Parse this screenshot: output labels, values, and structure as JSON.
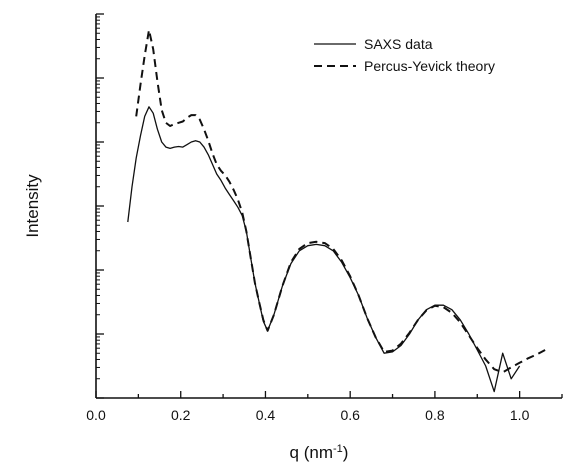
{
  "chart_data": {
    "type": "line",
    "title": "",
    "xlabel": "q (nm",
    "xlabel_sup": "-1",
    "xlabel_close": ")",
    "ylabel": "Intensity",
    "xlim": [
      0.0,
      1.1
    ],
    "ylim": [
      0,
      6
    ],
    "log_y": true,
    "y_tick_labels_shown": false,
    "x_ticks": [
      {
        "value": 0.0,
        "label": "0.0"
      },
      {
        "value": 0.2,
        "label": "0.2"
      },
      {
        "value": 0.4,
        "label": "0.4"
      },
      {
        "value": 0.6,
        "label": "0.6"
      },
      {
        "value": 0.8,
        "label": "0.8"
      },
      {
        "value": 1.0,
        "label": "1.0"
      }
    ],
    "grid": false,
    "legend_position": "top-right",
    "series": [
      {
        "name": "SAXS data",
        "style": "solid",
        "color": "#111111",
        "x": [
          0.075,
          0.085,
          0.095,
          0.105,
          0.115,
          0.125,
          0.135,
          0.145,
          0.155,
          0.165,
          0.175,
          0.185,
          0.195,
          0.205,
          0.215,
          0.225,
          0.235,
          0.245,
          0.255,
          0.265,
          0.275,
          0.285,
          0.295,
          0.305,
          0.315,
          0.325,
          0.335,
          0.345,
          0.355,
          0.365,
          0.375,
          0.385,
          0.395,
          0.405,
          0.42,
          0.44,
          0.46,
          0.48,
          0.5,
          0.52,
          0.54,
          0.56,
          0.58,
          0.6,
          0.62,
          0.64,
          0.66,
          0.68,
          0.7,
          0.72,
          0.74,
          0.76,
          0.78,
          0.8,
          0.82,
          0.84,
          0.86,
          0.88,
          0.9,
          0.92,
          0.94,
          0.96,
          0.98,
          1.0
        ],
        "y": [
          2.75,
          3.3,
          3.75,
          4.1,
          4.4,
          4.55,
          4.45,
          4.2,
          4.0,
          3.92,
          3.9,
          3.92,
          3.93,
          3.92,
          3.96,
          4.0,
          4.02,
          4.0,
          3.92,
          3.8,
          3.65,
          3.5,
          3.4,
          3.28,
          3.18,
          3.08,
          2.98,
          2.85,
          2.6,
          2.2,
          1.8,
          1.5,
          1.2,
          1.05,
          1.3,
          1.75,
          2.1,
          2.3,
          2.38,
          2.4,
          2.38,
          2.3,
          2.12,
          1.88,
          1.6,
          1.25,
          0.95,
          0.7,
          0.72,
          0.82,
          1.0,
          1.22,
          1.38,
          1.45,
          1.45,
          1.38,
          1.22,
          1.0,
          0.75,
          0.5,
          0.1,
          0.7,
          0.3,
          0.5
        ]
      },
      {
        "name": "Percus-Yevick theory",
        "style": "dashed",
        "color": "#111111",
        "x": [
          0.095,
          0.105,
          0.115,
          0.125,
          0.135,
          0.145,
          0.155,
          0.165,
          0.175,
          0.185,
          0.195,
          0.205,
          0.215,
          0.225,
          0.235,
          0.245,
          0.255,
          0.265,
          0.275,
          0.285,
          0.295,
          0.305,
          0.315,
          0.325,
          0.335,
          0.345,
          0.355,
          0.365,
          0.375,
          0.385,
          0.395,
          0.405,
          0.42,
          0.44,
          0.46,
          0.48,
          0.5,
          0.52,
          0.54,
          0.56,
          0.58,
          0.6,
          0.62,
          0.64,
          0.66,
          0.68,
          0.7,
          0.72,
          0.74,
          0.76,
          0.78,
          0.8,
          0.82,
          0.84,
          0.86,
          0.88,
          0.9,
          0.92,
          0.94,
          0.96,
          0.98,
          1.0,
          1.02,
          1.04,
          1.06
        ],
        "y": [
          4.4,
          4.9,
          5.35,
          5.75,
          5.45,
          4.95,
          4.5,
          4.3,
          4.25,
          4.28,
          4.3,
          4.32,
          4.38,
          4.42,
          4.42,
          4.35,
          4.2,
          4.02,
          3.82,
          3.65,
          3.55,
          3.48,
          3.38,
          3.25,
          3.1,
          2.9,
          2.6,
          2.2,
          1.8,
          1.5,
          1.22,
          1.05,
          1.3,
          1.75,
          2.12,
          2.33,
          2.42,
          2.44,
          2.42,
          2.33,
          2.15,
          1.9,
          1.6,
          1.25,
          0.95,
          0.72,
          0.74,
          0.85,
          1.02,
          1.22,
          1.37,
          1.44,
          1.42,
          1.33,
          1.18,
          0.98,
          0.78,
          0.6,
          0.45,
          0.4,
          0.48,
          0.55,
          0.62,
          0.68,
          0.75
        ]
      }
    ]
  }
}
